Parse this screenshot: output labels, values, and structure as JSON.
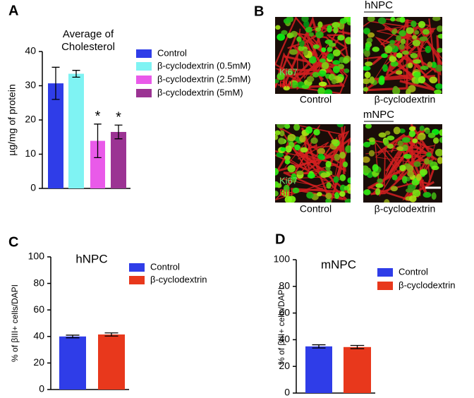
{
  "chart_data": [
    {
      "type": "bar",
      "panel": "A",
      "title": "Average of Cholesterol",
      "ylabel": "µg/mg of protein",
      "ylim": [
        0,
        40
      ],
      "yticks": [
        0,
        10,
        20,
        30,
        40
      ],
      "series": [
        {
          "name": "Control",
          "color": "#2f3de8",
          "values": [
            30.7
          ],
          "errors": [
            4.7
          ]
        },
        {
          "name": "β-cyclodextrin (0.5mM)",
          "color": "#7ff3f3",
          "values": [
            33.5
          ],
          "errors": [
            1.0
          ]
        },
        {
          "name": "β-cyclodextrin (2.5mM)",
          "color": "#e95ae9",
          "values": [
            13.9
          ],
          "errors": [
            4.9
          ],
          "annotation": "*"
        },
        {
          "name": "β-cyclodextrin (5mM)",
          "color": "#9b3393",
          "values": [
            16.5
          ],
          "errors": [
            2.0
          ],
          "annotation": "*"
        }
      ]
    },
    {
      "type": "bar",
      "panel": "C",
      "title": "hNPC",
      "ylabel": "% of βIII+ cells/DAPI",
      "ylim": [
        0,
        100
      ],
      "yticks": [
        0,
        20,
        40,
        60,
        80,
        100
      ],
      "series": [
        {
          "name": "Control",
          "color": "#2f3de8",
          "values": [
            40
          ],
          "errors": [
            1.0
          ]
        },
        {
          "name": "β-cyclodextrin",
          "color": "#e8381c",
          "values": [
            41.5
          ],
          "errors": [
            1.2
          ]
        }
      ]
    },
    {
      "type": "bar",
      "panel": "D",
      "title": "mNPC",
      "ylabel": "% of βIII+ cells/DAPI",
      "ylim": [
        0,
        100
      ],
      "yticks": [
        0,
        20,
        40,
        60,
        80,
        100
      ],
      "series": [
        {
          "name": "Control",
          "color": "#2f3de8",
          "values": [
            35
          ],
          "errors": [
            1.2
          ]
        },
        {
          "name": "β-cyclodextrin",
          "color": "#e8381c",
          "values": [
            34.5
          ],
          "errors": [
            1.2
          ]
        }
      ]
    }
  ],
  "panel_b": {
    "label": "B",
    "rows": [
      {
        "title": "hNPC",
        "captions": [
          "Control",
          "β-cyclodextrin"
        ],
        "stains": [
          "Ki67",
          "BIII"
        ]
      },
      {
        "title": "mNPC",
        "captions": [
          "Control",
          "β-cyclodextrin"
        ],
        "stains": [
          "Ki67",
          "BIII"
        ]
      }
    ]
  }
}
